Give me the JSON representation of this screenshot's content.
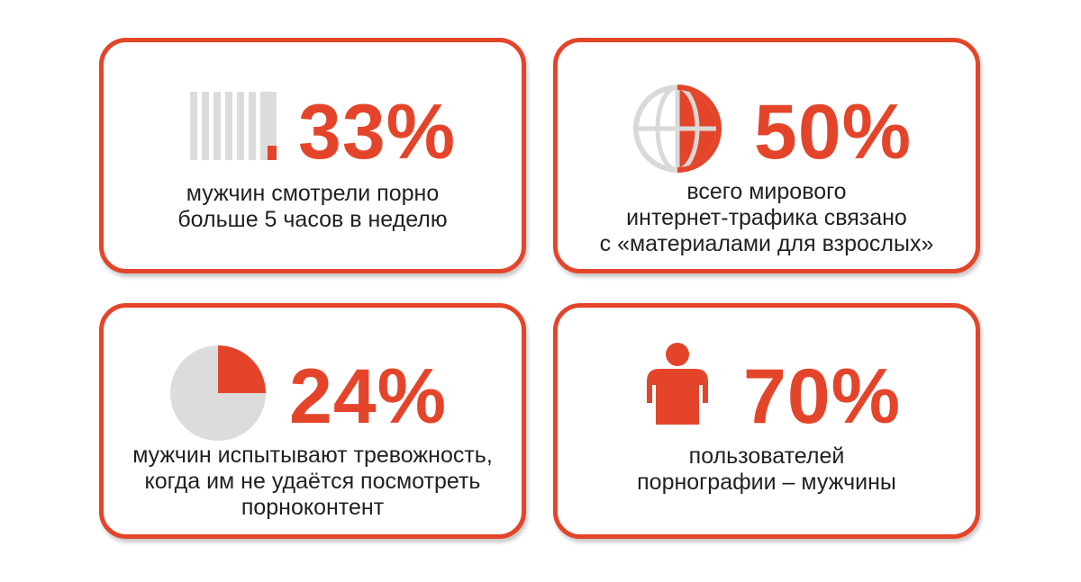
{
  "colors": {
    "accent": "#e4452a",
    "muted": "#dcdcdb",
    "text": "#231f20"
  },
  "cards": [
    {
      "value": "33%",
      "line1": "мужчин смотрели порно",
      "line2": "больше 5 часов в неделю",
      "line3": "",
      "icon": "bars-icon",
      "fill_fraction": 0.33
    },
    {
      "value": "50%",
      "line1": "всего мирового",
      "line2": "интернет-трафика связано",
      "line3": "с «материалами для взрослых»",
      "icon": "globe-icon",
      "fill_fraction": 0.5
    },
    {
      "value": "24%",
      "line1": "мужчин испытывают тревожность,",
      "line2": "когда им не удаётся посмотреть",
      "line3": "порноконтент",
      "icon": "pie-icon",
      "fill_fraction": 0.24
    },
    {
      "value": "70%",
      "line1": "пользователей",
      "line2": "порнографии – мужчины",
      "line3": "",
      "icon": "person-icon",
      "fill_fraction": 0.7
    }
  ]
}
